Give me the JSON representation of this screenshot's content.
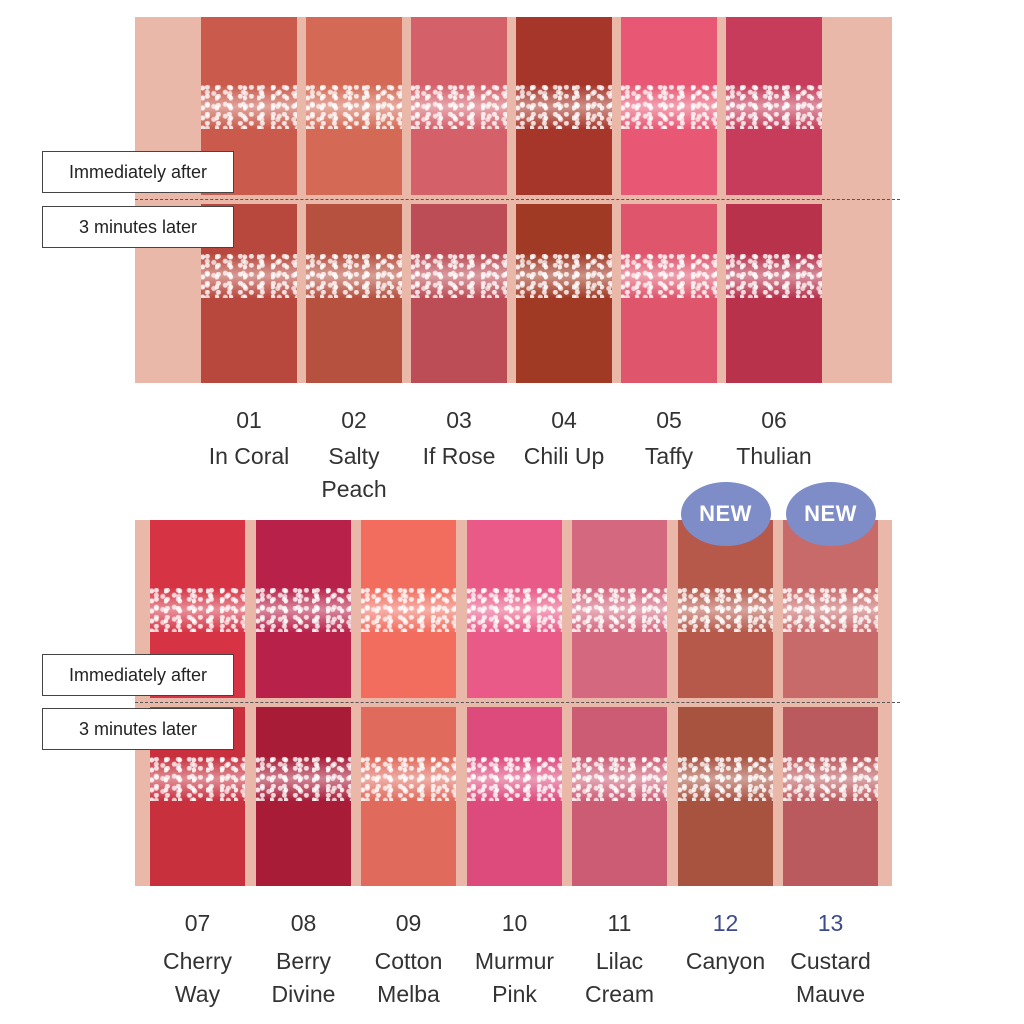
{
  "stage_labels": {
    "immediately_after": "Immediately after",
    "three_minutes_later": "3 minutes later"
  },
  "badge_text": "NEW",
  "colors": {
    "panel_background": "#eab8a8",
    "new_badge": "#7e8cc8",
    "number_accent": "#3d4a8c"
  },
  "shades": [
    {
      "number": "01",
      "name": "In Coral",
      "is_new": false,
      "color_after": "#c95a4c",
      "color_later": "#b8483e"
    },
    {
      "number": "02",
      "name": "Salty\nPeach",
      "is_new": false,
      "color_after": "#d46a55",
      "color_later": "#b6503f"
    },
    {
      "number": "03",
      "name": "If Rose",
      "is_new": false,
      "color_after": "#d4606a",
      "color_later": "#bc4c55"
    },
    {
      "number": "04",
      "name": "Chili Up",
      "is_new": false,
      "color_after": "#a7362a",
      "color_later": "#a13a25"
    },
    {
      "number": "05",
      "name": "Taffy",
      "is_new": false,
      "color_after": "#e85773",
      "color_later": "#df556c"
    },
    {
      "number": "06",
      "name": "Thulian",
      "is_new": false,
      "color_after": "#c63c5a",
      "color_later": "#b8324c"
    },
    {
      "number": "07",
      "name": "Cherry\nWay",
      "is_new": false,
      "color_after": "#d63444",
      "color_later": "#c8303e"
    },
    {
      "number": "08",
      "name": "Berry\nDivine",
      "is_new": false,
      "color_after": "#b8224a",
      "color_later": "#a81c38"
    },
    {
      "number": "09",
      "name": "Cotton\nMelba",
      "is_new": false,
      "color_after": "#f26d5e",
      "color_later": "#e06a5c"
    },
    {
      "number": "10",
      "name": "Murmur\nPink",
      "is_new": false,
      "color_after": "#ea5a88",
      "color_later": "#dd4a7c"
    },
    {
      "number": "11",
      "name": "Lilac\nCream",
      "is_new": false,
      "color_after": "#d4687e",
      "color_later": "#cc5c74"
    },
    {
      "number": "12",
      "name": "Canyon",
      "is_new": true,
      "color_after": "#b6594a",
      "color_later": "#a85240"
    },
    {
      "number": "13",
      "name": "Custard\nMauve",
      "is_new": true,
      "color_after": "#c96a6a",
      "color_later": "#bb5a5e"
    }
  ]
}
